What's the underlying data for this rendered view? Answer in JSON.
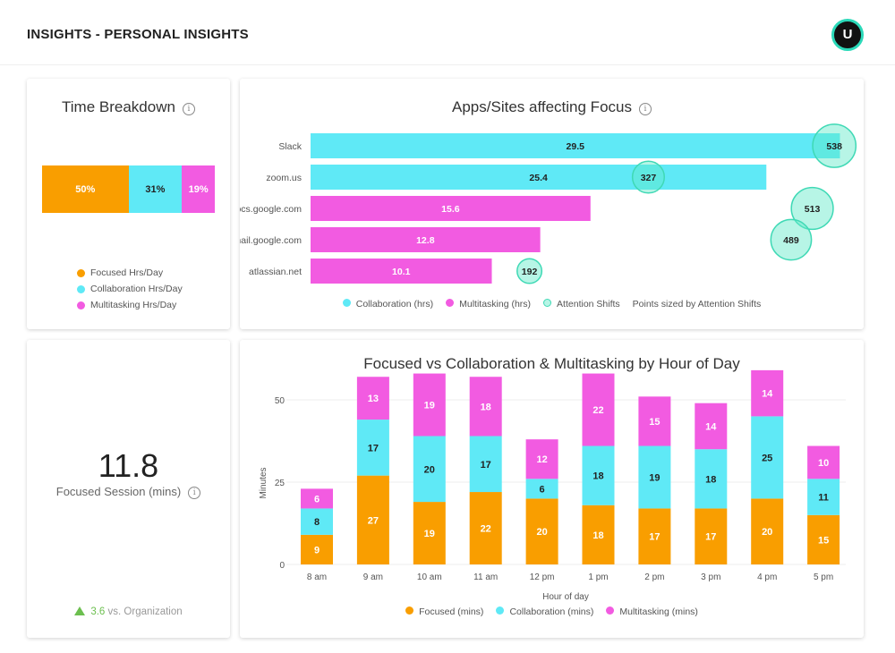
{
  "header": {
    "title": "INSIGHTS - PERSONAL INSIGHTS",
    "avatar_initial": "U"
  },
  "colors": {
    "focused": "#F99E00",
    "collaboration": "#5FE9F6",
    "multitasking": "#F25BE1",
    "attention": "#3FD9B5",
    "positive": "#6cbf4f"
  },
  "time_breakdown": {
    "title": "Time Breakdown",
    "segments": [
      {
        "label": "Focused Hrs/Day",
        "value": 50,
        "text": "50%"
      },
      {
        "label": "Collaboration Hrs/Day",
        "value": 31,
        "text": "31%"
      },
      {
        "label": "Multitasking Hrs/Day",
        "value": 19,
        "text": "19%"
      }
    ]
  },
  "focused_session": {
    "value": "11.8",
    "label": "Focused Session (mins)",
    "delta": "3.6",
    "delta_suffix": "vs. Organization",
    "delta_icon": "triangle-up-icon"
  },
  "chart_data": [
    {
      "type": "bar",
      "orientation": "horizontal",
      "title": "Apps/Sites affecting Focus",
      "categories": [
        "Slack",
        "zoom.us",
        "docs.google.com",
        "mail.google.com",
        "atlassian.net"
      ],
      "values": [
        29.5,
        25.4,
        15.6,
        12.8,
        10.1
      ],
      "bar_series": [
        "Collaboration (hrs)",
        "Collaboration (hrs)",
        "Multitasking (hrs)",
        "Multitasking (hrs)",
        "Multitasking (hrs)"
      ],
      "attention_shifts": [
        538,
        327,
        513,
        489,
        192
      ],
      "legend": [
        "Collaboration (hrs)",
        "Multitasking (hrs)",
        "Attention Shifts",
        "Points sized by Attention Shifts"
      ]
    },
    {
      "type": "bar",
      "stacked": true,
      "title": "Focused vs Collaboration & Multitasking by Hour of Day",
      "xlabel": "Hour of day",
      "ylabel": "Minutes",
      "ylim": [
        0,
        50
      ],
      "yticks": [
        "0",
        "25",
        "50"
      ],
      "grid": true,
      "legend_position": "bottom",
      "categories": [
        "8 am",
        "9 am",
        "10 am",
        "11 am",
        "12 pm",
        "1 pm",
        "2 pm",
        "3 pm",
        "4 pm",
        "5 pm"
      ],
      "series": [
        {
          "name": "Focused (mins)",
          "values": [
            9,
            27,
            19,
            22,
            20,
            18,
            17,
            17,
            20,
            15
          ]
        },
        {
          "name": "Collaboration (mins)",
          "values": [
            8,
            17,
            20,
            17,
            6,
            18,
            19,
            18,
            25,
            11
          ]
        },
        {
          "name": "Multitasking (mins)",
          "values": [
            6,
            13,
            19,
            18,
            12,
            22,
            15,
            14,
            14,
            10
          ]
        }
      ]
    }
  ]
}
